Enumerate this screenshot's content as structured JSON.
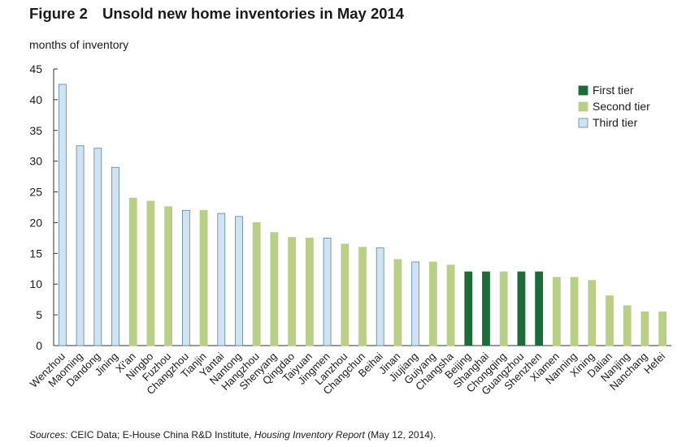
{
  "figure": {
    "number": "Figure 2",
    "title": "Unsold new home inventories in May 2014",
    "y_unit": "months of inventory",
    "source": {
      "prefix": "Sources:",
      "part1": " CEIC Data; E-House China R&D Institute, ",
      "report": "Housing Inventory Report",
      "part2": " (May 12, 2014)."
    }
  },
  "chart_data": {
    "type": "bar",
    "title": "Unsold new home inventories in May 2014",
    "ylabel": "months of inventory",
    "xlabel": "",
    "ylim": [
      0,
      45
    ],
    "yticks": [
      0,
      5,
      10,
      15,
      20,
      25,
      30,
      35,
      40,
      45
    ],
    "grid": false,
    "legend_position": "top-right",
    "tier_colors": {
      "First tier": "#1c6b3a",
      "Second tier": "#b9cf85",
      "Third tier": "#cfe3f0"
    },
    "tier_edge_colors": {
      "First tier": "#1c6b3a",
      "Second tier": "#b9cf85",
      "Third tier": "#5a84a8"
    },
    "legend": [
      "First tier",
      "Second tier",
      "Third tier"
    ],
    "categories": [
      "Wenzhou",
      "Maoming",
      "Dandong",
      "Jining",
      "Xi'an",
      "Ningbo",
      "Fuzhou",
      "Changzhou",
      "Tianjin",
      "Yantai",
      "Nantong",
      "Hangzhou",
      "Shenyang",
      "Qingdao",
      "Taiyuan",
      "Jingmen",
      "Lanzhou",
      "Changchun",
      "Beihai",
      "Jinan",
      "Jiujiang",
      "Guiyang",
      "Changsha",
      "Beijing",
      "Shanghai",
      "Chongqing",
      "Guangzhou",
      "Shenzhen",
      "Xiamen",
      "Nanning",
      "Xining",
      "Dalian",
      "Nanjing",
      "Nanchang",
      "Hefei"
    ],
    "values": [
      42.5,
      32.5,
      32.1,
      29.0,
      24.0,
      23.5,
      22.6,
      22.0,
      22.0,
      21.5,
      21.0,
      20.0,
      18.4,
      17.6,
      17.5,
      17.5,
      16.5,
      16.0,
      15.9,
      14.0,
      13.6,
      13.6,
      13.1,
      12.0,
      12.0,
      12.0,
      12.0,
      12.0,
      11.1,
      11.1,
      10.6,
      8.1,
      6.5,
      5.5,
      5.5
    ],
    "tiers": [
      "Third tier",
      "Third tier",
      "Third tier",
      "Third tier",
      "Second tier",
      "Second tier",
      "Second tier",
      "Third tier",
      "Second tier",
      "Third tier",
      "Third tier",
      "Second tier",
      "Second tier",
      "Second tier",
      "Second tier",
      "Third tier",
      "Second tier",
      "Second tier",
      "Third tier",
      "Second tier",
      "Third tier",
      "Second tier",
      "Second tier",
      "First tier",
      "First tier",
      "Second tier",
      "First tier",
      "First tier",
      "Second tier",
      "Second tier",
      "Second tier",
      "Second tier",
      "Second tier",
      "Second tier",
      "Second tier"
    ]
  }
}
